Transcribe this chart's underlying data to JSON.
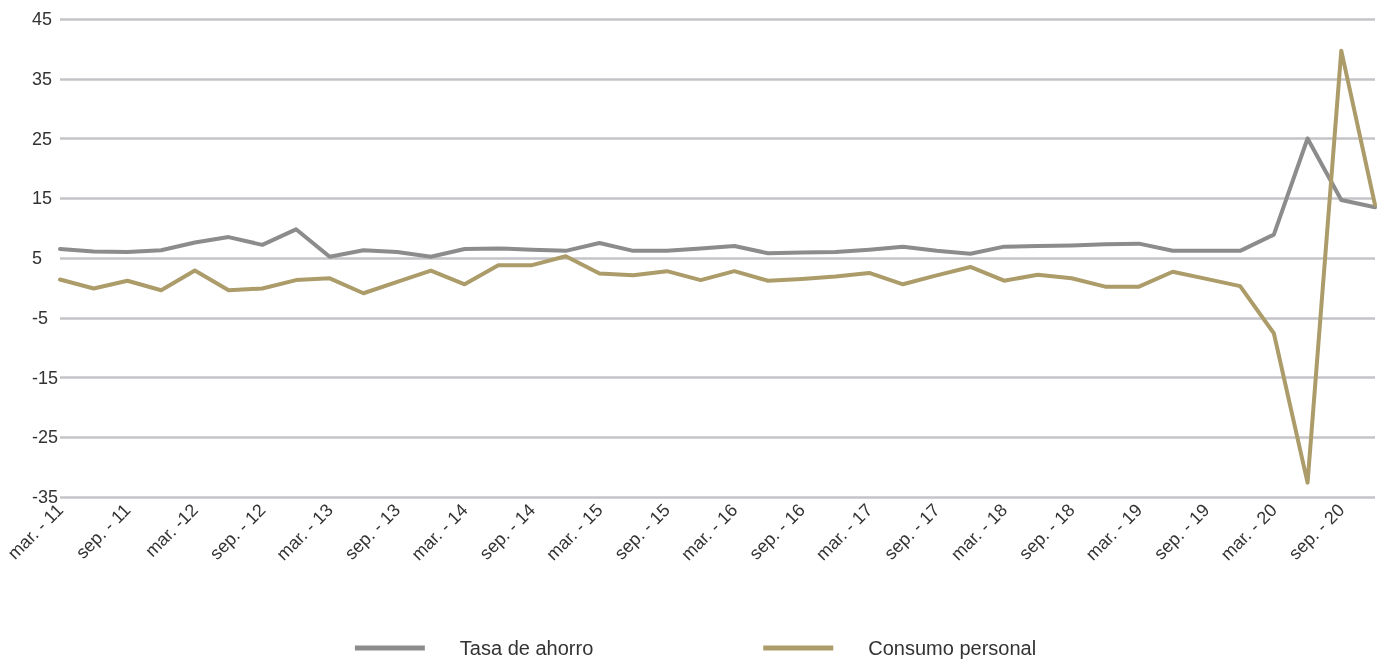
{
  "chart_data": {
    "type": "line",
    "categories": [
      "mar. - 11",
      null,
      "sep. - 11",
      null,
      "mar. -12",
      null,
      "sep. - 12",
      null,
      "mar. - 13",
      null,
      "sep. - 13",
      null,
      "mar. - 14",
      null,
      "sep. - 14",
      null,
      "mar. - 15",
      null,
      "sep. - 15",
      null,
      "mar. - 16",
      null,
      "sep. - 16",
      null,
      "mar. - 17",
      null,
      "sep. - 17",
      null,
      "mar. - 18",
      null,
      "sep. - 18",
      null,
      "mar. - 19",
      null,
      "sep. - 19",
      null,
      "mar. - 20",
      null,
      "sep. - 20",
      null
    ],
    "series": [
      {
        "name": "Tasa de ahorro",
        "color": "#8c8c8c",
        "values": [
          6.5,
          6.1,
          6.0,
          6.3,
          7.6,
          8.5,
          7.2,
          9.8,
          5.2,
          6.3,
          6.0,
          5.2,
          6.5,
          6.6,
          6.4,
          6.2,
          7.5,
          6.2,
          6.2,
          6.6,
          7.0,
          5.8,
          5.9,
          6.0,
          6.4,
          6.9,
          6.2,
          5.7,
          6.9,
          7.0,
          7.1,
          7.3,
          7.4,
          6.2,
          6.2,
          6.2,
          8.9,
          25.0,
          14.7,
          13.5
        ]
      },
      {
        "name": "Consumo personal",
        "color": "#ac9c6a",
        "values": [
          1.4,
          -0.1,
          1.2,
          -0.4,
          2.9,
          -0.4,
          -0.1,
          1.3,
          1.6,
          -0.9,
          1.0,
          2.9,
          0.6,
          3.8,
          3.8,
          5.3,
          2.4,
          2.1,
          2.8,
          1.3,
          2.8,
          1.2,
          1.5,
          1.9,
          2.5,
          0.6,
          2.1,
          3.5,
          1.2,
          2.2,
          1.6,
          0.2,
          0.2,
          2.7,
          1.5,
          0.3,
          -7.6,
          -32.6,
          39.7,
          13.9
        ]
      }
    ],
    "ylim": [
      -35,
      45
    ],
    "yticks": [
      -35,
      -25,
      -15,
      -5,
      5,
      15,
      25,
      35,
      45
    ],
    "grid": "y",
    "legend": "bottom",
    "marker": "none",
    "line_style": "solid"
  }
}
